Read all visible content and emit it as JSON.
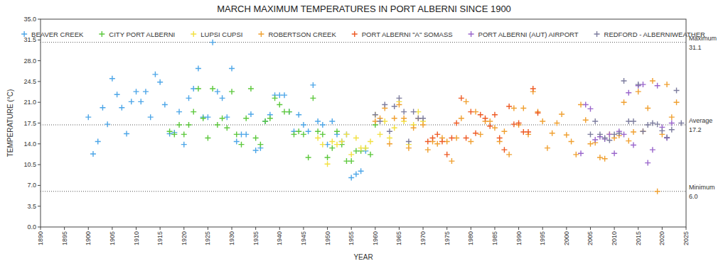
{
  "chart_data": {
    "type": "scatter",
    "title": "MARCH MAXIMUM TEMPERATURES IN PORT ALBERNI SINCE 1900",
    "x_label": "YEAR",
    "y_label": "TEMPERATURE (°C)",
    "xlim": [
      1890,
      2025
    ],
    "xticks": [
      1890,
      1895,
      1900,
      1905,
      1910,
      1915,
      1920,
      1925,
      1930,
      1935,
      1940,
      1945,
      1950,
      1955,
      1960,
      1965,
      1970,
      1975,
      1980,
      1985,
      1990,
      1995,
      2000,
      2005,
      2010,
      2015,
      2020,
      2025
    ],
    "ylim": [
      0,
      35
    ],
    "yticks": [
      {
        "value": 0,
        "label": "0.0"
      },
      3.5,
      {
        "value": 7,
        "label": "7.0"
      },
      10.5,
      {
        "value": 14,
        "label": "14.0"
      },
      17.5,
      {
        "value": 21,
        "label": "21.0"
      },
      24.5,
      {
        "value": 28,
        "label": "28.0"
      },
      31.5,
      {
        "value": 35,
        "label": "35.0"
      }
    ],
    "grid": false,
    "legend": "top",
    "reference_lines": [
      {
        "label": "Maximum",
        "value": 31.1
      },
      {
        "label": "Average",
        "value": 17.2
      },
      {
        "label": "Minimum",
        "value": 6,
        "value_label": "6.0"
      }
    ],
    "series": [
      {
        "name": "BEAVER CREEK",
        "color": "#4da6e8",
        "marker": "plus",
        "x": [
          1900,
          1901,
          1902,
          1903,
          1904,
          1905,
          1906,
          1907,
          1908,
          1909,
          1910,
          1911,
          1912,
          1913,
          1914,
          1915,
          1916,
          1917,
          1918,
          1919,
          1920,
          1921,
          1922,
          1923,
          1924,
          1925,
          1926,
          1927,
          1928,
          1929,
          1930,
          1931,
          1932,
          1933,
          1934,
          1935,
          1936,
          1937,
          1938,
          1939,
          1940,
          1941,
          1942,
          1943,
          1944,
          1945,
          1946,
          1947,
          1948,
          1949,
          1950,
          1951,
          1952,
          1953,
          1954,
          1955,
          1956,
          1957,
          1958
        ],
        "values": [
          18.5,
          12.3,
          14.4,
          20.1,
          17.3,
          25.0,
          22.3,
          20.1,
          15.7,
          21.1,
          22.8,
          21.1,
          22.8,
          18.5,
          25.7,
          24.4,
          20.6,
          15.7,
          15.9,
          19.4,
          13.9,
          21.7,
          23.3,
          26.7,
          18.5,
          18.5,
          31.1,
          22.8,
          21.7,
          18.5,
          26.7,
          14.4,
          15.6,
          15.6,
          19.0,
          12.9,
          13.3,
          17.8,
          18.9,
          22.2,
          22.2,
          22.2,
          19.4,
          16.1,
          18.9,
          17.2,
          16.1,
          23.9,
          17.8,
          17.2,
          13.9,
          17.8,
          15.6,
          14.4,
          15.6,
          8.3,
          8.9,
          9.4,
          12.8
        ]
      },
      {
        "name": "CITY PORT ALBERNI",
        "color": "#5cc83c",
        "marker": "plus",
        "x": [
          1917,
          1918,
          1919,
          1920,
          1921,
          1922,
          1923,
          1924,
          1925,
          1926,
          1927,
          1928,
          1929,
          1930,
          1931,
          1932,
          1933,
          1934,
          1935,
          1936,
          1937,
          1938,
          1939,
          1940,
          1941,
          1942,
          1943,
          1944,
          1945,
          1946,
          1947,
          1948,
          1949,
          1950,
          1951,
          1952,
          1953,
          1954,
          1955,
          1956,
          1957,
          1958,
          1959,
          1960
        ],
        "values": [
          16.1,
          15.6,
          17.2,
          15.6,
          17.2,
          19.4,
          23.3,
          18.3,
          15.0,
          23.3,
          17.2,
          18.3,
          16.7,
          22.8,
          15.6,
          13.9,
          18.3,
          23.3,
          15.0,
          13.9,
          17.8,
          18.3,
          21.7,
          20.6,
          19.4,
          19.4,
          15.6,
          16.1,
          15.6,
          11.7,
          21.7,
          16.1,
          15.6,
          11.7,
          13.3,
          16.1,
          13.9,
          11.1,
          11.1,
          12.8,
          12.8,
          13.3,
          12.2,
          17.2
        ]
      },
      {
        "name": "LUPSI CUPSI",
        "color": "#f2e040",
        "marker": "plus",
        "x": [
          1948,
          1949,
          1950,
          1951,
          1952,
          1953,
          1954,
          1955,
          1956,
          1957,
          1958,
          1959,
          1960,
          1961,
          1962,
          1963,
          1964,
          1965,
          1966,
          1967,
          1968,
          1969,
          1970
        ],
        "values": [
          15.0,
          13.9,
          10.6,
          14.4,
          13.9,
          14.4,
          15.6,
          12.2,
          15.0,
          13.3,
          13.3,
          14.4,
          18.9,
          15.6,
          17.8,
          15.0,
          16.7,
          21.1,
          17.8,
          13.9,
          17.2,
          19.4,
          17.8
        ]
      },
      {
        "name": "ROBERTSON CREEK",
        "color": "#f0a030",
        "marker": "plus",
        "x": [
          1960,
          1961,
          1962,
          1963,
          1964,
          1965,
          1966,
          1967,
          1968,
          1969,
          1970,
          1971,
          1972,
          1973,
          1974,
          1975,
          1976,
          1977,
          1978,
          1979,
          1980,
          1981,
          1982,
          1983,
          1984,
          1985,
          1986,
          1987,
          1988,
          1989,
          1990,
          1991,
          1992,
          1993,
          1994,
          1995,
          1996,
          1997,
          1998,
          1999,
          2000,
          2001,
          2002,
          2003,
          2004,
          2005,
          2006,
          2007,
          2008,
          2009,
          2010,
          2011,
          2012,
          2013,
          2014,
          2015,
          2016,
          2017,
          2018,
          2019,
          2020,
          2021,
          2022,
          2023
        ],
        "values": [
          17.8,
          18.3,
          20.0,
          14.0,
          18.3,
          20.6,
          18.3,
          13.3,
          16.7,
          18.3,
          17.2,
          13.0,
          14.4,
          14.0,
          15.0,
          14.4,
          11.1,
          15.0,
          18.3,
          21.1,
          14.4,
          19.4,
          15.6,
          17.8,
          17.8,
          16.7,
          14.4,
          16.1,
          12.2,
          20.0,
          17.2,
          20.0,
          15.6,
          22.8,
          19.4,
          17.8,
          13.3,
          15.8,
          17.5,
          19.0,
          15.5,
          14.4,
          12.2,
          20.6,
          18.0,
          14.0,
          14.2,
          11.7,
          11.5,
          15.6,
          15.0,
          15.4,
          21.0,
          14.5,
          16.0,
          22.8,
          16.1,
          20.0,
          24.6,
          6.0,
          15.6,
          24.0,
          18.5,
          21.0
        ]
      },
      {
        "name": "PORT ALBERNI \"A\" SOMASS",
        "color": "#ee5a24",
        "marker": "plus",
        "x": [
          1971,
          1972,
          1973,
          1974,
          1975,
          1976,
          1977,
          1978,
          1979,
          1980,
          1981,
          1982,
          1983,
          1984,
          1985,
          1986,
          1987,
          1988,
          1989,
          1990,
          1991,
          1992,
          1993,
          1994
        ],
        "values": [
          14.4,
          15.0,
          15.6,
          14.4,
          12.2,
          15.0,
          17.5,
          21.7,
          15.0,
          19.4,
          15.8,
          18.9,
          18.3,
          17.0,
          18.9,
          15.0,
          13.0,
          20.3,
          17.3,
          17.5,
          16.0,
          16.0,
          23.3,
          19.2
        ]
      },
      {
        "name": "PORT ALBERNI (AUT) AIRPORT",
        "color": "#9a66cc",
        "marker": "plus",
        "x": [
          2003,
          2004,
          2005,
          2006,
          2007,
          2008,
          2009,
          2010,
          2011,
          2012,
          2013,
          2014,
          2015,
          2016,
          2017,
          2018,
          2019,
          2020,
          2021,
          2022
        ],
        "values": [
          12.4,
          20.6,
          19.9,
          14.7,
          15.2,
          14.8,
          15.6,
          12.4,
          16.1,
          15.6,
          22.6,
          13.8,
          23.8,
          24.0,
          10.8,
          13.0,
          23.8,
          16.8,
          15.0,
          17.5
        ]
      },
      {
        "name": "REDFORD - ALBERNIWEATHER",
        "color": "#7c7c9e",
        "marker": "plus",
        "x": [
          1960,
          1961,
          1962,
          1963,
          1964,
          1965,
          1966,
          1967,
          1968,
          1969,
          1970,
          2005,
          2006,
          2007,
          2008,
          2009,
          2010,
          2011,
          2012,
          2013,
          2014,
          2015,
          2016,
          2017,
          2018,
          2019,
          2020,
          2021,
          2022,
          2023,
          2024
        ],
        "values": [
          18.9,
          17.8,
          20.6,
          16.1,
          20.3,
          21.7,
          19.4,
          14.4,
          19.4,
          18.3,
          18.3,
          15.6,
          17.8,
          15.6,
          15.0,
          14.6,
          15.6,
          15.8,
          24.6,
          17.8,
          17.8,
          24.0,
          16.1,
          17.2,
          17.5,
          17.3,
          16.2,
          15.1,
          16.4,
          23.0,
          17.5
        ]
      }
    ]
  }
}
